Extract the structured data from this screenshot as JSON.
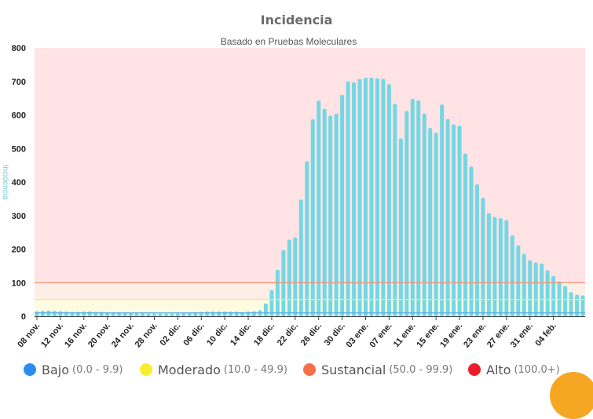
{
  "header": {
    "title": "Incidencia",
    "subtitle": "Basado en Pruebas Moleculares"
  },
  "legend": [
    {
      "name": "Bajo",
      "range": "(0.0 - 9.9)",
      "color": "#2e8cf0"
    },
    {
      "name": "Moderado",
      "range": "(10.0 - 49.9)",
      "color": "#f7ef2e"
    },
    {
      "name": "Sustancial",
      "range": "(50.0 - 99.9)",
      "color": "#f56e4a"
    },
    {
      "name": "Alto",
      "range": "(100.0+)",
      "color": "#ec1c2c"
    }
  ],
  "colors": {
    "bar": "#74d7e3",
    "zone_high": "#ffe3e5",
    "zone_substantial": "#fdeee6",
    "zone_moderate": "#fffbe0",
    "zone_low": "#e8f4fd",
    "line_substantial": "#f5916c",
    "line_moderate": "#f5ef60",
    "line_low": "#5aaee8",
    "fab": "#f5a623"
  },
  "chart_data": {
    "type": "bar",
    "title": "Incidencia",
    "subtitle": "Basado en Pruebas Moleculares",
    "ylabel": "Incidencia",
    "ylim": [
      0,
      800
    ],
    "yticks": [
      0,
      100,
      200,
      300,
      400,
      500,
      600,
      700,
      800
    ],
    "xtick_labels": [
      "08 nov.",
      "12 nov.",
      "16 nov.",
      "20 nov.",
      "24 nov.",
      "28 nov.",
      "02 dic.",
      "06 dic.",
      "10 dic.",
      "14 dic.",
      "18 dic.",
      "22 dic.",
      "26 dic.",
      "30 dic.",
      "03 ene.",
      "07 ene.",
      "11 ene.",
      "15 ene.",
      "19 ene.",
      "23 ene.",
      "27 ene.",
      "31 ene.",
      "04 feb."
    ],
    "thresholds": {
      "moderate": 10,
      "substantial": 50,
      "high": 100
    },
    "series": [
      {
        "values": [
          15,
          16,
          17,
          16,
          15,
          14,
          13,
          13,
          14,
          14,
          13,
          13,
          12,
          12,
          12,
          11,
          10,
          9,
          9,
          8,
          8,
          8,
          8,
          8,
          9,
          10,
          11,
          12,
          13,
          14,
          14,
          14,
          14,
          14,
          14,
          13,
          14,
          15,
          18,
          38,
          78,
          138,
          197,
          228,
          235,
          348,
          462,
          587,
          643,
          618,
          598,
          604,
          660,
          700,
          697,
          707,
          711,
          711,
          709,
          708,
          692,
          633,
          530,
          612,
          648,
          644,
          604,
          561,
          547,
          631,
          588,
          572,
          568,
          485,
          446,
          393,
          353,
          307,
          296,
          292,
          287,
          241,
          211,
          186,
          167,
          160,
          157,
          137,
          120,
          104,
          90,
          72,
          64,
          62
        ]
      }
    ]
  }
}
